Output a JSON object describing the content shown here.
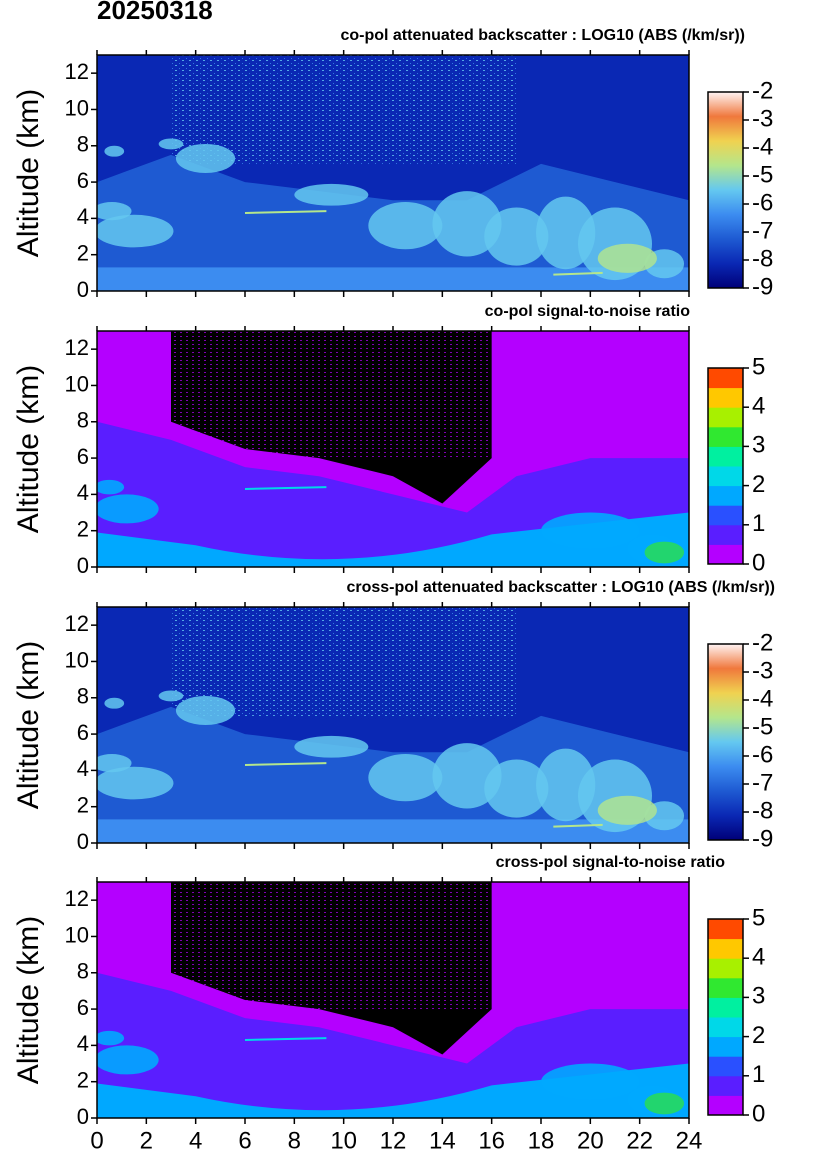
{
  "title": "20250318",
  "chart_data": [
    {
      "type": "heatmap",
      "title": "co-pol attenuated backscatter : LOG10 (ABS (/km/sr))",
      "ylabel": "Altitude (km)",
      "xlim": [
        0,
        24
      ],
      "xticks": [
        0,
        2,
        4,
        6,
        8,
        10,
        12,
        14,
        16,
        18,
        20,
        22,
        24
      ],
      "ylim": [
        0,
        13
      ],
      "yticks": [
        0,
        2,
        4,
        6,
        8,
        10,
        12
      ],
      "colorbar": {
        "lim": [
          -9,
          -2
        ],
        "ticks": [
          -9,
          -8,
          -7,
          -6,
          -5,
          -4,
          -3,
          -2
        ],
        "colors": [
          "#000078",
          "#0a28b4",
          "#1e5ad2",
          "#3c8cf0",
          "#64c8f0",
          "#b4e68c",
          "#f0d250",
          "#f0783c",
          "#fff4f4"
        ]
      }
    },
    {
      "type": "heatmap",
      "title": "co-pol signal-to-noise ratio",
      "ylabel": "Altitude (km)",
      "xlim": [
        0,
        24
      ],
      "xticks": [
        0,
        2,
        4,
        6,
        8,
        10,
        12,
        14,
        16,
        18,
        20,
        22,
        24
      ],
      "ylim": [
        0,
        13
      ],
      "yticks": [
        0,
        2,
        4,
        6,
        8,
        10,
        12
      ],
      "colorbar": {
        "lim": [
          0,
          5
        ],
        "ticks": [
          0,
          1,
          2,
          3,
          4,
          5
        ],
        "colors": [
          "#b400ff",
          "#5a1eff",
          "#2a50ff",
          "#00a8ff",
          "#00d8e8",
          "#00f0a0",
          "#30e830",
          "#a8f000",
          "#ffc800",
          "#ff4a00"
        ]
      }
    },
    {
      "type": "heatmap",
      "title": "cross-pol attenuated backscatter : LOG10 (ABS (/km/sr))",
      "ylabel": "Altitude (km)",
      "xlim": [
        0,
        24
      ],
      "xticks": [
        0,
        2,
        4,
        6,
        8,
        10,
        12,
        14,
        16,
        18,
        20,
        22,
        24
      ],
      "ylim": [
        0,
        13
      ],
      "yticks": [
        0,
        2,
        4,
        6,
        8,
        10,
        12
      ],
      "colorbar": {
        "lim": [
          -9,
          -2
        ],
        "ticks": [
          -9,
          -8,
          -7,
          -6,
          -5,
          -4,
          -3,
          -2
        ],
        "colors": [
          "#000078",
          "#0a28b4",
          "#1e5ad2",
          "#3c8cf0",
          "#64c8f0",
          "#b4e68c",
          "#f0d250",
          "#f0783c",
          "#fff4f4"
        ]
      }
    },
    {
      "type": "heatmap",
      "title": "cross-pol signal-to-noise ratio",
      "ylabel": "Altitude (km)",
      "xlim": [
        0,
        24
      ],
      "xticks": [
        0,
        2,
        4,
        6,
        8,
        10,
        12,
        14,
        16,
        18,
        20,
        22,
        24
      ],
      "ylim": [
        0,
        13
      ],
      "yticks": [
        0,
        2,
        4,
        6,
        8,
        10,
        12
      ],
      "colorbar": {
        "lim": [
          0,
          5
        ],
        "ticks": [
          0,
          1,
          2,
          3,
          4,
          5
        ],
        "colors": [
          "#b400ff",
          "#5a1eff",
          "#2a50ff",
          "#00a8ff",
          "#00d8e8",
          "#00f0a0",
          "#30e830",
          "#a8f000",
          "#ffc800",
          "#ff4a00"
        ]
      }
    }
  ]
}
